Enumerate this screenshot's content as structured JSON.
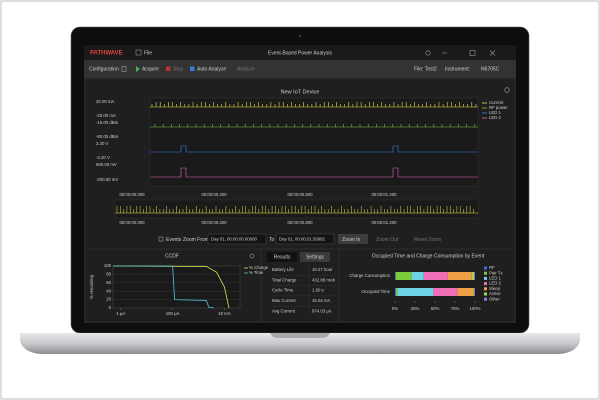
{
  "app": {
    "logo": "PATHWAVE",
    "menu": "File",
    "title": "Event-Based Power Analysis"
  },
  "toolbar": {
    "configuration": "Configuration",
    "acquire": "Acquire",
    "stop": "Stop",
    "auto_analyze": "Auto Analyze",
    "analyze": "Analyze",
    "file": "File: Test2",
    "instrument_label": "Instrument:",
    "instrument": "N6705C"
  },
  "waveform": {
    "title": "New IoT Device",
    "y_labels": [
      "20.00 mA",
      "-20.00 mA",
      "-16.00 dBm",
      "-80.00 dBm",
      "3.20 V",
      "-3.20 V",
      "600.00 mV",
      "-200.00 mV"
    ],
    "legend": [
      {
        "name": "Current",
        "color": "#e3e34a"
      },
      {
        "name": "RF power",
        "color": "#7ccc3a"
      },
      {
        "name": "LED 1",
        "color": "#3f7fe8"
      },
      {
        "name": "LED 2",
        "color": "#ee5fb5"
      }
    ],
    "x_labels": [
      "00:00:00.000",
      "00:00:00.400",
      "00:00:00.800",
      "00:00:01.200"
    ],
    "overview_x_labels": [
      "00:00:00.000",
      "00:00:00.400",
      "00:00:00.800",
      "00:00:01.200"
    ]
  },
  "zoom": {
    "events": "Events",
    "zoom_from": "Zoom From:",
    "from": "Day 01, 00:00:00.00000",
    "to_label": "To",
    "to": "Day 01, 00:00:01.59992",
    "zoom_in": "Zoom In",
    "zoom_out": "Zoom Out",
    "reset_zoom": "Reset Zoom"
  },
  "ccdf": {
    "type": "line",
    "title": "CCDF",
    "y_label": "% remaining",
    "log_x": true,
    "grid": true,
    "xlim": [
      5e-07,
      0.04
    ],
    "ylim": [
      0,
      100
    ],
    "yticks": [
      0,
      20,
      40,
      60,
      80,
      100
    ],
    "xticks": [
      {
        "value": 1e-06,
        "label": "1 µA"
      },
      {
        "value": 0.0001,
        "label": "100 µA"
      },
      {
        "value": 0.01,
        "label": "10 mA"
      }
    ],
    "series": [
      {
        "name": "% Charge",
        "color": "#d4e157",
        "x": [
          5e-07,
          0.002,
          0.005,
          0.01,
          0.015
        ],
        "values": [
          100,
          99,
          85,
          50,
          0
        ]
      },
      {
        "name": "% Time",
        "color": "#4fc3d9",
        "x": [
          5e-07,
          0.0001,
          0.00012,
          0.002,
          0.0025,
          0.004
        ],
        "values": [
          100,
          100,
          20,
          18,
          2,
          0
        ]
      }
    ]
  },
  "results": {
    "tabs": [
      "Results",
      "Settings"
    ],
    "rows": [
      [
        "Battery Life",
        "10.27 hour"
      ],
      [
        "Total Charge",
        "432.88 mAh"
      ],
      [
        "Cycle Time",
        "1.60 s"
      ],
      [
        "Max Current",
        "16.04 mA"
      ],
      [
        "Avg Current",
        "974.03 µA"
      ]
    ]
  },
  "events": {
    "type": "bar",
    "horizontal": true,
    "stacked": true,
    "title": "Occupied Time and Charge Consumption by Event",
    "categories": [
      "Charge Consumption",
      "Occupied Time"
    ],
    "xlim": [
      0,
      100
    ],
    "xticks": [
      {
        "value": 0,
        "label": "0%"
      },
      {
        "value": 25,
        "label": "25%"
      },
      {
        "value": 50,
        "label": "50%"
      },
      {
        "value": 75,
        "label": "75%"
      },
      {
        "value": 100,
        "label": "100%"
      }
    ],
    "series": [
      {
        "name": "RF",
        "color": "#3f6fd8",
        "values": [
          1,
          1
        ]
      },
      {
        "name": "Pair Tx",
        "color": "#7ccc3a",
        "values": [
          20,
          2
        ]
      },
      {
        "name": "LED 1",
        "color": "#6fd3e8",
        "values": [
          15,
          45
        ]
      },
      {
        "name": "LED 2",
        "color": "#ee6fb5",
        "values": [
          30,
          30
        ]
      },
      {
        "name": "Sleep",
        "color": "#f0a044",
        "values": [
          30,
          20
        ]
      },
      {
        "name": "Active",
        "color": "#9fd45a",
        "values": [
          3,
          1
        ]
      },
      {
        "name": "Other",
        "color": "#a070e0",
        "values": [
          1,
          1
        ]
      }
    ]
  }
}
